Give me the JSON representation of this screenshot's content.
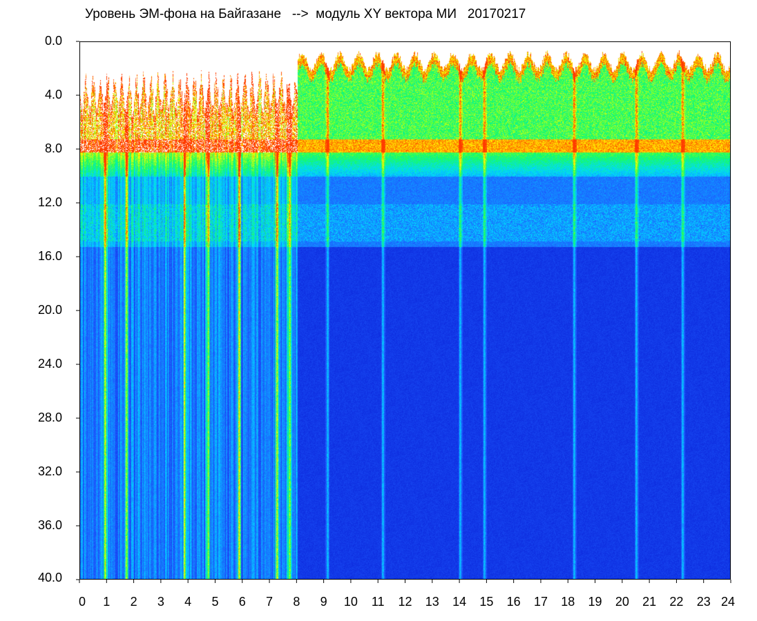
{
  "chart_data": {
    "type": "heatmap",
    "title": "Уровень ЭМ-фона на Байгазане   -->  модуль XY вектора МИ   20170217",
    "xlabel": "",
    "ylabel": "",
    "xlim": [
      0,
      24
    ],
    "ylim": [
      0,
      40
    ],
    "y_inverted": true,
    "x_ticks": [
      "0",
      "1",
      "2",
      "3",
      "4",
      "5",
      "6",
      "7",
      "8",
      "9",
      "10",
      "11",
      "12",
      "13",
      "14",
      "15",
      "16",
      "17",
      "18",
      "19",
      "20",
      "21",
      "22",
      "23",
      "24"
    ],
    "y_ticks": [
      "0.0",
      "4.0",
      "8.0",
      "12.0",
      "16.0",
      "20.0",
      "24.0",
      "28.0",
      "32.0",
      "36.0",
      "40.0"
    ],
    "colormap": [
      "#0a22d8",
      "#1e5cff",
      "#00d8ff",
      "#19ff5a",
      "#ffff00",
      "#ff1a00",
      "#ffffff"
    ],
    "frame_color": "#000000",
    "grid": false,
    "legend": "none"
  }
}
